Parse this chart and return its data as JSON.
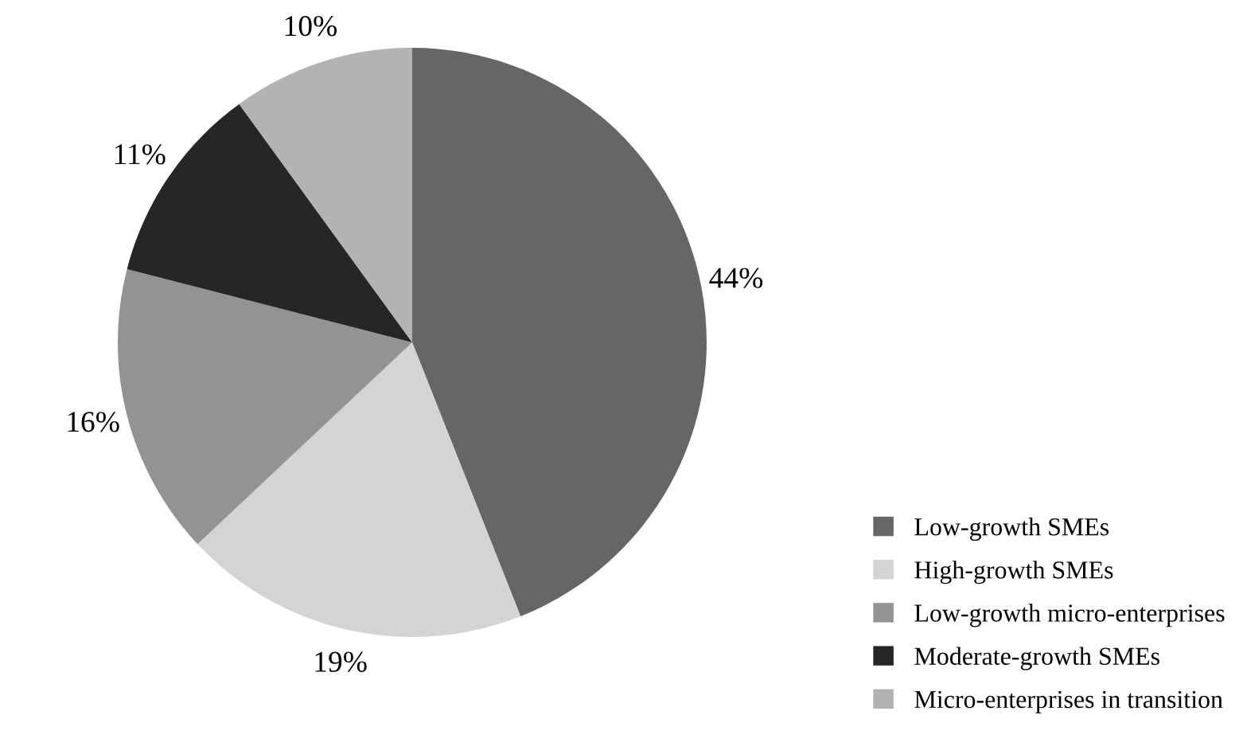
{
  "chart_data": {
    "type": "pie",
    "categories": [
      "Low-growth SMEs",
      "High-growth SMEs",
      "Low-growth micro-enterprises",
      "Moderate-growth SMEs",
      "Micro-enterprises in transition"
    ],
    "values": [
      44,
      19,
      16,
      11,
      10
    ],
    "colors": [
      "#666666",
      "#d4d4d4",
      "#939393",
      "#262626",
      "#b3b3b3"
    ],
    "value_labels": [
      "44%",
      "19%",
      "16%",
      "11%",
      "10%"
    ],
    "legend": "bottom right"
  }
}
